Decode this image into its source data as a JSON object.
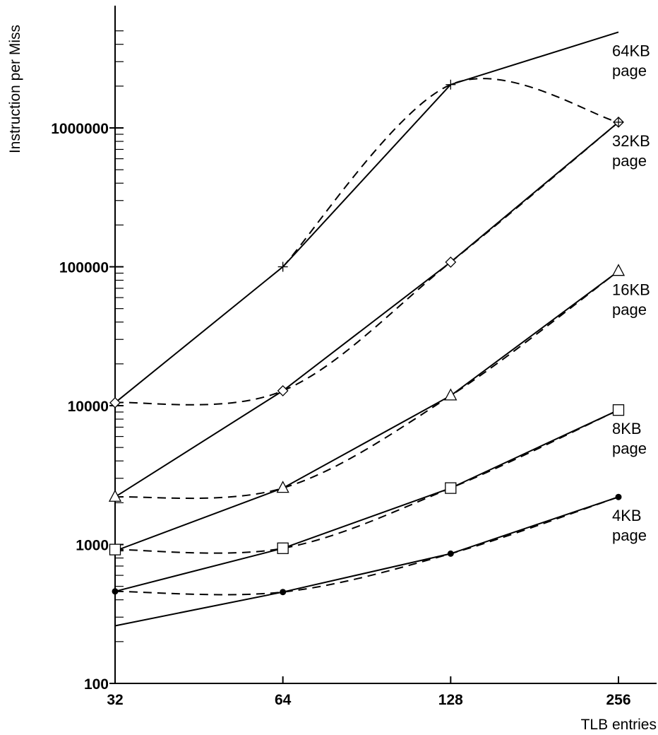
{
  "chart_data": {
    "type": "line",
    "xlabel": "TLB entries",
    "ylabel": "Instruction per Miss",
    "x_scale": "log2",
    "y_scale": "log10",
    "x": [
      32,
      64,
      128,
      256
    ],
    "x_tick_labels": [
      "32",
      "64",
      "128",
      "256"
    ],
    "ylim": [
      100,
      5000000
    ],
    "y_tick_labels": [
      "100",
      "1000",
      "10000",
      "100000",
      "1000000"
    ],
    "y_tick_values": [
      100,
      1000,
      10000,
      100000,
      1000000
    ],
    "series": [
      {
        "label_lines": [
          "4KB",
          "page"
        ],
        "marker": "dot",
        "color": "#000000",
        "solid": [
          260,
          455,
          860,
          2200
        ],
        "dashed": [
          460,
          455,
          860,
          2200
        ]
      },
      {
        "label_lines": [
          "8KB",
          "page"
        ],
        "marker": "square",
        "color": "#000000",
        "solid": [
          460,
          940,
          2550,
          9300
        ],
        "dashed": [
          920,
          940,
          2550,
          9300
        ]
      },
      {
        "label_lines": [
          "16KB",
          "page"
        ],
        "marker": "triangle",
        "color": "#000000",
        "solid": [
          900,
          2550,
          11800,
          93000
        ],
        "dashed": [
          2200,
          2550,
          11800,
          93000
        ]
      },
      {
        "label_lines": [
          "32KB",
          "page"
        ],
        "marker": "diamond",
        "color": "#000000",
        "solid": [
          2200,
          12800,
          108000,
          1100000
        ],
        "dashed": [
          10500,
          12800,
          108000,
          1100000
        ]
      },
      {
        "label_lines": [
          "64KB",
          "page"
        ],
        "marker": "plus",
        "color": "#000000",
        "solid": [
          10500,
          100000,
          2050000,
          4900000
        ],
        "dashed": [
          null,
          100000,
          2050000,
          1100000
        ]
      }
    ]
  }
}
